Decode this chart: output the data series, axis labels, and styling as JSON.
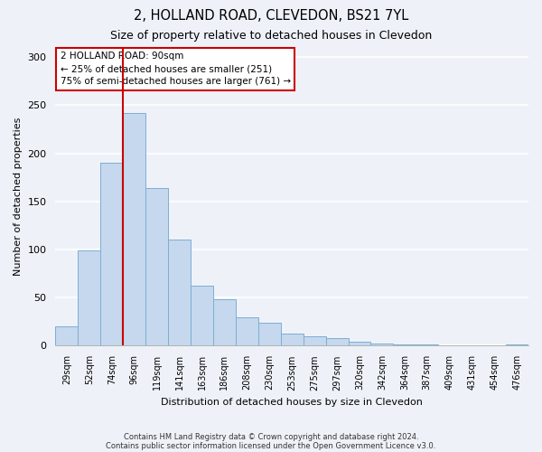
{
  "title": "2, HOLLAND ROAD, CLEVEDON, BS21 7YL",
  "subtitle": "Size of property relative to detached houses in Clevedon",
  "xlabel": "Distribution of detached houses by size in Clevedon",
  "ylabel": "Number of detached properties",
  "bar_labels": [
    "29sqm",
    "52sqm",
    "74sqm",
    "96sqm",
    "119sqm",
    "141sqm",
    "163sqm",
    "186sqm",
    "208sqm",
    "230sqm",
    "253sqm",
    "275sqm",
    "297sqm",
    "320sqm",
    "342sqm",
    "364sqm",
    "387sqm",
    "409sqm",
    "431sqm",
    "454sqm",
    "476sqm"
  ],
  "bar_values": [
    20,
    99,
    190,
    242,
    164,
    110,
    62,
    48,
    30,
    24,
    13,
    10,
    8,
    4,
    2,
    1,
    1,
    0,
    0,
    0,
    1
  ],
  "bar_color": "#c5d8ed",
  "bar_edge_color": "#7eadd4",
  "vline_color": "#cc0000",
  "vline_x_index": 3.0,
  "annotation_title": "2 HOLLAND ROAD: 90sqm",
  "annotation_line1": "← 25% of detached houses are smaller (251)",
  "annotation_line2": "75% of semi-detached houses are larger (761) →",
  "annotation_box_color": "white",
  "annotation_box_edge": "#cc0000",
  "ylim": [
    0,
    310
  ],
  "yticks": [
    0,
    50,
    100,
    150,
    200,
    250,
    300
  ],
  "footnote1": "Contains HM Land Registry data © Crown copyright and database right 2024.",
  "footnote2": "Contains public sector information licensed under the Open Government Licence v3.0.",
  "background_color": "#eef2f8"
}
